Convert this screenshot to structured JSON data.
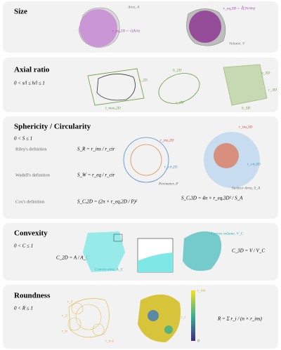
{
  "panels": [
    {
      "title": "Size",
      "labels": [
        "Area, A",
        "r_eq,2D = √(A/π)",
        "r_eq,3D = ∛(3V/4π)",
        "Volume, V"
      ]
    },
    {
      "title": "Axial ratio",
      "condition": "0 < s/l ≤ h/l ≤ 1",
      "labels": [
        "s_2D",
        "l_max,2D",
        "h_2D",
        "s_2D",
        "a_3D",
        "c_3D",
        "b_3D"
      ]
    },
    {
      "title": "Sphericity / Circularity",
      "condition": "0 < S ≤ 1",
      "rows": [
        {
          "name": "Riley's definition",
          "formula": "S_R = r_ins / r_cir"
        },
        {
          "name": "Wadell's definition",
          "formula": "S_W = r_eq / r_cir"
        },
        {
          "name": "Cox's definition",
          "formula": "S_C,2D = (2π × r_eq,2D / P)²"
        }
      ],
      "formula_3d": "S_C,3D = 4π × r_eq,3D² / S_A",
      "labels": [
        "r_ins,2D",
        "r_cir,2D",
        "Perimeter, P",
        "r_ins,3D",
        "r_cir,3D",
        "Surface Area, S_A"
      ]
    },
    {
      "title": "Convexity",
      "condition": "0 < C ≤ 1",
      "labels": [
        "C_2D = A / A_C",
        "Convex area, A_C",
        "Convex volume, V_C",
        "C_3D = V / V_C"
      ]
    },
    {
      "title": "Roundness",
      "condition": "0 < R ≤ 1",
      "labels": [
        "r_1",
        "r_2",
        "r_n",
        "r_n-1",
        "r_ins",
        "0",
        "r_i",
        "R = Σ r_i / (n × r_ins)"
      ]
    }
  ]
}
